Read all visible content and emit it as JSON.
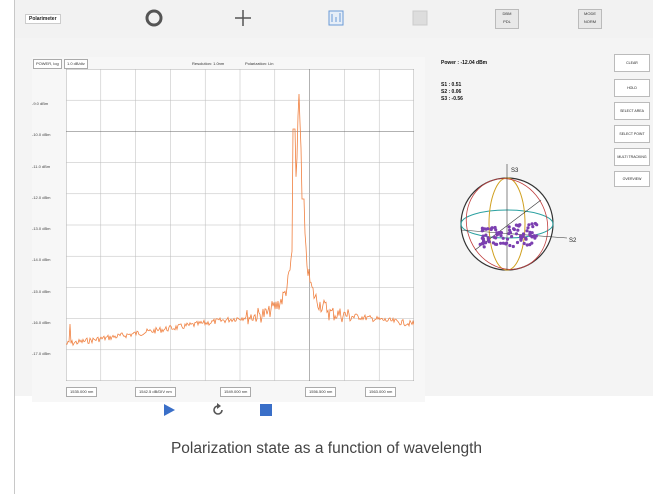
{
  "app": {
    "name": "Polarimeter"
  },
  "toolbar": {
    "buttons": [
      {
        "name": "circle-tool-icon"
      },
      {
        "name": "crosshair-tool-icon"
      },
      {
        "name": "chart-view-icon"
      },
      {
        "name": "blank-tool-icon"
      }
    ],
    "boxes": [
      {
        "label1": "DBM",
        "label2": "PDL"
      },
      {
        "label1": "MODE",
        "label2": "NORM"
      }
    ]
  },
  "plot": {
    "header_left": "POWER, log",
    "header_left2": "1.0 dB/div",
    "header_mid1": "Resolution: 1.0nm",
    "header_mid2": "Polarization: Lin",
    "header_right": "Fast Sweep Spectrum",
    "y_labels": [
      "-9.0 dBm",
      "-10.0 dBm",
      "-11.0 dBm",
      "-12.0 dBm",
      "-13.0 dBm",
      "-14.0 dBm",
      "-15.0 dBm",
      "-16.0 dBm",
      "-17.0 dBm"
    ],
    "x_labels": [
      "1535.000 nm",
      "1542.5 dB/DIV nm",
      "1549.000 nm",
      "1556.500 nm",
      "1563.000 nm"
    ],
    "trace_color": "#f08040"
  },
  "readout": {
    "power": "Power : -12.04 dBm",
    "s1": "S1 : 0.51",
    "s2": "S2 : 0.06",
    "s3": "S3 : -0.56"
  },
  "sphere": {
    "axis_s3": "S3",
    "axis_s2": "S2",
    "dot_color": "#7b3fb0"
  },
  "side_buttons": [
    "CLEAR",
    "HOLD",
    "SELECT AREA",
    "SELECT POINT",
    "MULTI TRACKING",
    "OVERVIEW"
  ],
  "controls": {
    "play_color": "#3a6fc8",
    "stop_color": "#3a6fc8"
  },
  "caption": "Polarization state as a function of wavelength"
}
